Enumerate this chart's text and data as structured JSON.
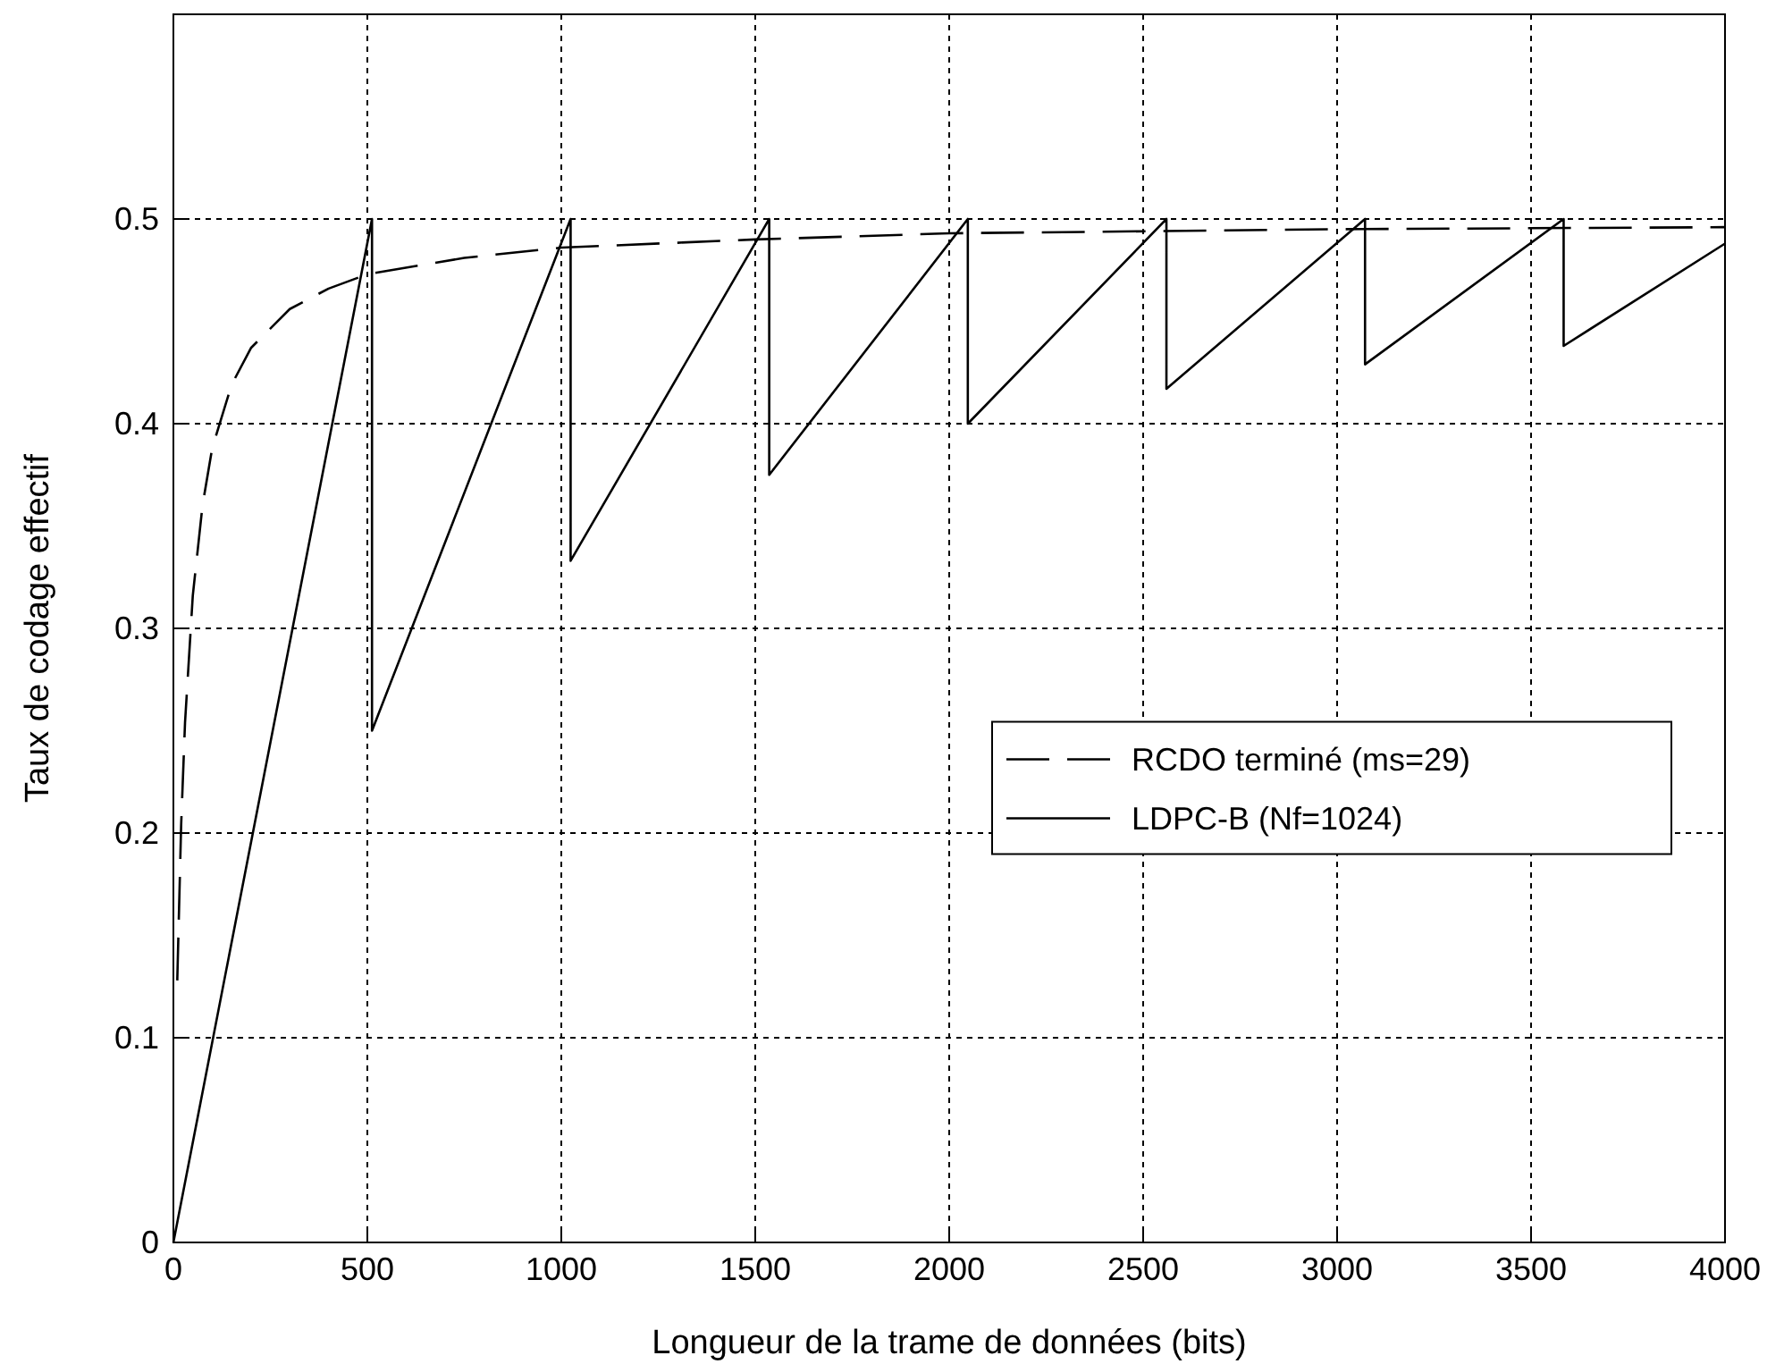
{
  "chart_data": {
    "type": "line",
    "xlabel": "Longueur de la trame de données (bits)",
    "ylabel": "Taux de codage effectif",
    "xlim": [
      0,
      4000
    ],
    "xticks": [
      0,
      500,
      1000,
      1500,
      2000,
      2500,
      3000,
      3500,
      4000
    ],
    "ylim": [
      0,
      0.6
    ],
    "yticks": [
      0,
      0.1,
      0.2,
      0.3,
      0.4,
      0.5
    ],
    "grid": true,
    "legend": "bottom right",
    "marker": "none",
    "series": [
      {
        "name": "RCDO terminé (ms=29)",
        "color": "#000000",
        "line_style": "dashed",
        "x": [
          10,
          20,
          30,
          50,
          75,
          100,
          150,
          200,
          300,
          400,
          500,
          750,
          1000,
          1500,
          2000,
          3000,
          4000
        ],
        "values": [
          0.128,
          0.204,
          0.254,
          0.316,
          0.36,
          0.388,
          0.419,
          0.437,
          0.456,
          0.466,
          0.473,
          0.481,
          0.486,
          0.49,
          0.493,
          0.495,
          0.496
        ]
      },
      {
        "name": "LDPC-B (Nf=1024)",
        "color": "#000000",
        "line_style": "solid",
        "x": [
          0,
          512,
          512,
          1024,
          1024,
          1536,
          1536,
          2048,
          2048,
          2560,
          2560,
          3072,
          3072,
          3584,
          3584,
          4000
        ],
        "values": [
          0,
          0.5,
          0.25,
          0.5,
          0.333,
          0.5,
          0.375,
          0.5,
          0.4,
          0.5,
          0.417,
          0.5,
          0.429,
          0.5,
          0.438,
          0.488
        ]
      }
    ]
  }
}
